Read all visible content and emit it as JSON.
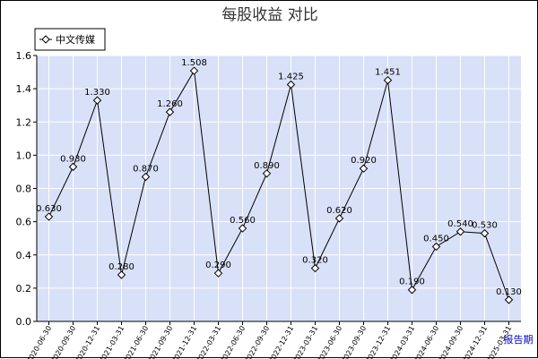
{
  "chart_data": {
    "type": "line",
    "title": "每股收益  对比",
    "categories": [
      "2020-06-30",
      "2020-09-30",
      "2020-12-31",
      "2021-03-31",
      "2021-06-30",
      "2021-09-30",
      "2021-12-31",
      "2022-03-31",
      "2022-06-30",
      "2022-09-30",
      "2022-12-31",
      "2023-03-31",
      "2023-06-30",
      "2023-09-30",
      "2023-12-31",
      "2024-03-31",
      "2024-06-30",
      "2024-09-30",
      "2024-12-31",
      "2025-03-31"
    ],
    "series": [
      {
        "name": "中文传媒",
        "values": [
          0.63,
          0.93,
          1.33,
          0.28,
          0.87,
          1.26,
          1.508,
          0.29,
          0.56,
          0.89,
          1.425,
          0.32,
          0.62,
          0.92,
          1.451,
          0.19,
          0.45,
          0.54,
          0.53,
          0.13
        ],
        "labels": [
          "0.630",
          "0.930",
          "1.330",
          "0.280",
          "0.870",
          "1.260",
          "1.508",
          "0.290",
          "0.560",
          "0.890",
          "1.425",
          "0.320",
          "0.620",
          "0.920",
          "1.451",
          "0.190",
          "0.450",
          "0.540",
          "0.530",
          "0.130"
        ]
      }
    ],
    "ylim": [
      0,
      1.6
    ],
    "yticks": [
      "0.0",
      "0.2",
      "0.4",
      "0.6",
      "0.8",
      "1.0",
      "1.2",
      "1.4",
      "1.6"
    ],
    "xlabel": "报告期",
    "ylabel": "",
    "grid": true,
    "legend": "top-left",
    "colors": {
      "plot_bg": "#d9e1f8",
      "grid": "#ffffff",
      "line": "#000000",
      "marker_fill": "#ffffff",
      "axis_unit": "#0000cc"
    }
  }
}
